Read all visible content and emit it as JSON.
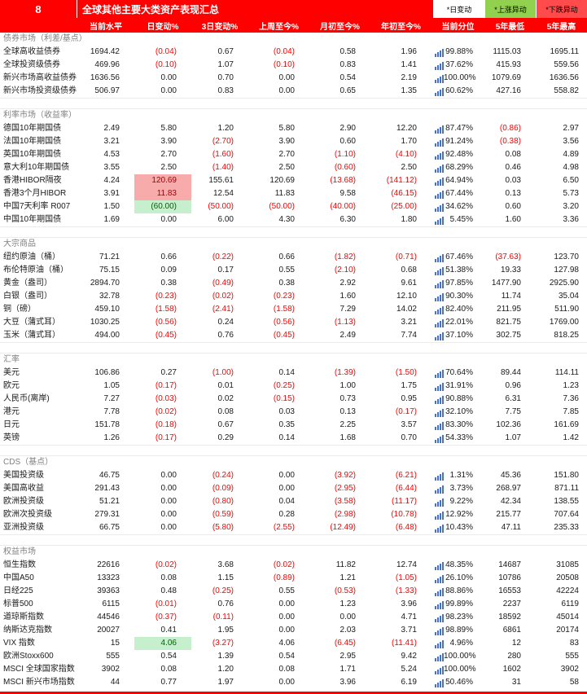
{
  "header": {
    "index": "8",
    "title": "全球其他主要大类资产表现汇总",
    "legend": [
      {
        "label": "*日变动",
        "type": "plain"
      },
      {
        "label": "*上涨异动",
        "type": "up"
      },
      {
        "label": "*下跌异动",
        "type": "down"
      }
    ]
  },
  "columns": [
    "当前水平",
    "日变动%",
    "3日变动%",
    "上周至今%",
    "月初至今%",
    "年初至今%",
    "当前分位",
    "5年最低",
    "5年最高"
  ],
  "colors": {
    "header_red": "#FF0000",
    "negative_text": "#FF0000",
    "legend_up_bg": "#92D050",
    "legend_down_bg": "#FF4B4B",
    "highlight_pink_bg": "#F8ABAB",
    "highlight_pink_text": "#9C0006",
    "highlight_green_bg": "#C6EFCE",
    "highlight_green_text": "#006100",
    "percentile_icon_blue": "#4472C4",
    "section_title_gray": "#808080"
  },
  "sections": [
    {
      "name": "债券市场（利差/基点）",
      "rows": [
        {
          "label": "全球高收益债券",
          "values": [
            "1694.42",
            "(0.04)",
            "0.67",
            "(0.04)",
            "0.58",
            "1.96",
            "99.88%",
            "1115.03",
            "1695.11"
          ]
        },
        {
          "label": "全球投资级债券",
          "values": [
            "469.96",
            "(0.10)",
            "1.07",
            "(0.10)",
            "0.83",
            "1.41",
            "37.62%",
            "415.93",
            "559.56"
          ]
        },
        {
          "label": "新兴市场高收益债券",
          "values": [
            "1636.56",
            "0.00",
            "0.70",
            "0.00",
            "0.54",
            "2.19",
            "100.00%",
            "1079.69",
            "1636.56"
          ]
        },
        {
          "label": "新兴市场投资级债券",
          "values": [
            "506.97",
            "0.00",
            "0.83",
            "0.00",
            "0.65",
            "1.35",
            "60.62%",
            "427.16",
            "558.82"
          ]
        }
      ]
    },
    {
      "name": "利率市场（收益率）",
      "rows": [
        {
          "label": "德国10年期国债",
          "values": [
            "2.49",
            "5.80",
            "1.20",
            "5.80",
            "2.90",
            "12.20",
            "87.47%",
            "(0.86)",
            "2.97"
          ]
        },
        {
          "label": "法国10年期国债",
          "values": [
            "3.21",
            "3.90",
            "(2.70)",
            "3.90",
            "0.60",
            "1.70",
            "91.24%",
            "(0.38)",
            "3.56"
          ]
        },
        {
          "label": "英国10年期国债",
          "values": [
            "4.53",
            "2.70",
            "(1.60)",
            "2.70",
            "(1.10)",
            "(4.10)",
            "92.48%",
            "0.08",
            "4.89"
          ]
        },
        {
          "label": "意大利10年期国债",
          "values": [
            "3.55",
            "2.50",
            "(1.40)",
            "2.50",
            "(0.60)",
            "2.50",
            "68.29%",
            "0.46",
            "4.98"
          ]
        },
        {
          "label": "香港HIBOR隔夜",
          "values": [
            "4.24",
            "120.69",
            "155.61",
            "120.69",
            "(13.68)",
            "(141.12)",
            "64.94%",
            "0.03",
            "6.50"
          ],
          "hl": {
            "1": "pink"
          }
        },
        {
          "label": "香港3个月HIBOR",
          "values": [
            "3.91",
            "11.83",
            "12.54",
            "11.83",
            "9.58",
            "(46.15)",
            "67.44%",
            "0.13",
            "5.73"
          ],
          "hl": {
            "1": "pink"
          }
        },
        {
          "label": "中国7天利率 R007",
          "values": [
            "1.50",
            "(60.00)",
            "(50.00)",
            "(50.00)",
            "(40.00)",
            "(25.00)",
            "34.62%",
            "0.60",
            "3.20"
          ],
          "hl": {
            "1": "green"
          }
        },
        {
          "label": "中国10年期国债",
          "values": [
            "1.69",
            "0.00",
            "6.00",
            "4.30",
            "6.30",
            "1.80",
            "5.45%",
            "1.60",
            "3.36"
          ]
        }
      ]
    },
    {
      "name": "大宗商品",
      "rows": [
        {
          "label": "纽约原油（桶）",
          "values": [
            "71.21",
            "0.66",
            "(0.22)",
            "0.66",
            "(1.82)",
            "(0.71)",
            "67.46%",
            "(37.63)",
            "123.70"
          ]
        },
        {
          "label": "布伦特原油（桶）",
          "values": [
            "75.15",
            "0.09",
            "0.17",
            "0.55",
            "(2.10)",
            "0.68",
            "51.38%",
            "19.33",
            "127.98"
          ]
        },
        {
          "label": "黄金（盎司）",
          "values": [
            "2894.70",
            "0.38",
            "(0.49)",
            "0.38",
            "2.92",
            "9.61",
            "97.85%",
            "1477.90",
            "2925.90"
          ]
        },
        {
          "label": "白银（盎司）",
          "values": [
            "32.78",
            "(0.23)",
            "(0.02)",
            "(0.23)",
            "1.60",
            "12.10",
            "90.30%",
            "11.74",
            "35.04"
          ]
        },
        {
          "label": "铜（磅）",
          "values": [
            "459.10",
            "(1.58)",
            "(2.41)",
            "(1.58)",
            "7.29",
            "14.02",
            "82.40%",
            "211.95",
            "511.90"
          ]
        },
        {
          "label": "大豆（蒲式耳）",
          "values": [
            "1030.25",
            "(0.56)",
            "0.24",
            "(0.56)",
            "(1.13)",
            "3.21",
            "22.01%",
            "821.75",
            "1769.00"
          ]
        },
        {
          "label": "玉米（蒲式耳）",
          "values": [
            "494.00",
            "(0.45)",
            "0.76",
            "(0.45)",
            "2.49",
            "7.74",
            "37.10%",
            "302.75",
            "818.25"
          ]
        }
      ]
    },
    {
      "name": "汇率",
      "rows": [
        {
          "label": "美元",
          "values": [
            "106.86",
            "0.27",
            "(1.00)",
            "0.14",
            "(1.39)",
            "(1.50)",
            "70.64%",
            "89.44",
            "114.11"
          ]
        },
        {
          "label": "欧元",
          "values": [
            "1.05",
            "(0.17)",
            "0.01",
            "(0.25)",
            "1.00",
            "1.75",
            "31.91%",
            "0.96",
            "1.23"
          ]
        },
        {
          "label": "人民币(离岸)",
          "values": [
            "7.27",
            "(0.03)",
            "0.02",
            "(0.15)",
            "0.73",
            "0.95",
            "90.88%",
            "6.31",
            "7.36"
          ]
        },
        {
          "label": "港元",
          "values": [
            "7.78",
            "(0.02)",
            "0.08",
            "0.03",
            "0.13",
            "(0.17)",
            "32.10%",
            "7.75",
            "7.85"
          ]
        },
        {
          "label": "日元",
          "values": [
            "151.78",
            "(0.18)",
            "0.67",
            "0.35",
            "2.25",
            "3.57",
            "83.30%",
            "102.36",
            "161.69"
          ]
        },
        {
          "label": "英镑",
          "values": [
            "1.26",
            "(0.17)",
            "0.29",
            "0.14",
            "1.68",
            "0.70",
            "54.33%",
            "1.07",
            "1.42"
          ]
        }
      ]
    },
    {
      "name": "CDS（基点）",
      "rows": [
        {
          "label": "美国投资级",
          "values": [
            "46.75",
            "0.00",
            "(0.24)",
            "0.00",
            "(3.92)",
            "(6.21)",
            "1.31%",
            "45.36",
            "151.80"
          ]
        },
        {
          "label": "美国高收益",
          "values": [
            "291.43",
            "0.00",
            "(0.09)",
            "0.00",
            "(2.95)",
            "(6.44)",
            "3.73%",
            "268.97",
            "871.11"
          ]
        },
        {
          "label": "欧洲投资级",
          "values": [
            "51.21",
            "0.00",
            "(0.80)",
            "0.04",
            "(3.58)",
            "(11.17)",
            "9.22%",
            "42.34",
            "138.55"
          ]
        },
        {
          "label": "欧洲次投资级",
          "values": [
            "279.31",
            "0.00",
            "(0.59)",
            "0.28",
            "(2.98)",
            "(10.78)",
            "12.92%",
            "215.77",
            "707.64"
          ]
        },
        {
          "label": "亚洲投资级",
          "values": [
            "66.75",
            "0.00",
            "(5.80)",
            "(2.55)",
            "(12.49)",
            "(6.48)",
            "10.43%",
            "47.11",
            "235.33"
          ]
        }
      ]
    },
    {
      "name": "权益市场",
      "rows": [
        {
          "label": "恒生指数",
          "values": [
            "22616",
            "(0.02)",
            "3.68",
            "(0.02)",
            "11.82",
            "12.74",
            "48.35%",
            "14687",
            "31085"
          ]
        },
        {
          "label": "中国A50",
          "values": [
            "13323",
            "0.08",
            "1.15",
            "(0.89)",
            "1.21",
            "(1.05)",
            "26.10%",
            "10786",
            "20508"
          ]
        },
        {
          "label": "日经225",
          "values": [
            "39363",
            "0.48",
            "(0.25)",
            "0.55",
            "(0.53)",
            "(1.33)",
            "88.86%",
            "16553",
            "42224"
          ]
        },
        {
          "label": "标普500",
          "values": [
            "6115",
            "(0.01)",
            "0.76",
            "0.00",
            "1.23",
            "3.96",
            "99.89%",
            "2237",
            "6119"
          ]
        },
        {
          "label": "道琼斯指数",
          "values": [
            "44546",
            "(0.37)",
            "(0.11)",
            "0.00",
            "0.00",
            "4.71",
            "98.23%",
            "18592",
            "45014"
          ]
        },
        {
          "label": "纳斯达克指数",
          "values": [
            "20027",
            "0.41",
            "1.95",
            "0.00",
            "2.03",
            "3.71",
            "98.89%",
            "6861",
            "20174"
          ]
        },
        {
          "label": "VIX 指数",
          "values": [
            "15",
            "4.06",
            "(3.27)",
            "4.06",
            "(6.45)",
            "(11.41)",
            "4.96%",
            "12",
            "83"
          ],
          "hl": {
            "1": "green"
          }
        },
        {
          "label": "欧洲Stoxx600",
          "values": [
            "555",
            "0.54",
            "1.39",
            "0.54",
            "2.95",
            "9.42",
            "100.00%",
            "280",
            "555"
          ]
        },
        {
          "label": "MSCI 全球国家指数",
          "values": [
            "3902",
            "0.08",
            "1.20",
            "0.08",
            "1.71",
            "5.24",
            "100.00%",
            "1602",
            "3902"
          ]
        },
        {
          "label": "MSCI 新兴市场指数",
          "values": [
            "44",
            "0.77",
            "1.97",
            "0.00",
            "3.96",
            "6.19",
            "50.46%",
            "31",
            "58"
          ]
        }
      ]
    }
  ]
}
